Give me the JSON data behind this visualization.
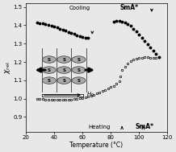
{
  "xlabel": "Temperature (°C)",
  "xlim": [
    20,
    120
  ],
  "ylim": [
    0.82,
    1.52
  ],
  "yticks": [
    0.9,
    1.0,
    1.1,
    1.2,
    1.3,
    1.4,
    1.5
  ],
  "xticks": [
    20,
    40,
    60,
    80,
    100,
    120
  ],
  "cooling_x": [
    28,
    30,
    32,
    34,
    36,
    38,
    40,
    42,
    44,
    46,
    48,
    50,
    52,
    54,
    56,
    58,
    60,
    62,
    64,
    82,
    84,
    86,
    88,
    90,
    92,
    94,
    96,
    98,
    100,
    102,
    104,
    106,
    108,
    110,
    112,
    114
  ],
  "cooling_y": [
    1.415,
    1.413,
    1.41,
    1.406,
    1.401,
    1.397,
    1.392,
    1.387,
    1.382,
    1.376,
    1.37,
    1.364,
    1.358,
    1.352,
    1.346,
    1.34,
    1.336,
    1.333,
    1.33,
    1.42,
    1.422,
    1.422,
    1.42,
    1.416,
    1.408,
    1.396,
    1.382,
    1.366,
    1.349,
    1.33,
    1.313,
    1.295,
    1.278,
    1.26,
    1.242,
    1.228
  ],
  "heating_x": [
    28,
    30,
    32,
    34,
    36,
    38,
    40,
    42,
    44,
    46,
    48,
    50,
    52,
    54,
    56,
    58,
    60,
    62,
    64,
    66,
    68,
    70,
    72,
    74,
    76,
    78,
    80,
    82,
    84,
    86,
    87,
    88,
    90,
    92,
    94,
    96,
    98,
    100,
    102,
    104,
    106,
    108,
    110,
    112
  ],
  "heating_y": [
    0.998,
    0.998,
    0.997,
    0.996,
    0.995,
    0.994,
    0.994,
    0.993,
    0.993,
    0.993,
    0.994,
    0.995,
    0.996,
    0.997,
    0.999,
    1.001,
    1.004,
    1.008,
    1.012,
    1.017,
    1.022,
    1.028,
    1.034,
    1.04,
    1.047,
    1.054,
    1.062,
    1.07,
    1.08,
    1.095,
    1.12,
    1.155,
    1.175,
    1.19,
    1.203,
    1.212,
    1.218,
    1.222,
    1.224,
    1.226,
    1.225,
    1.223,
    1.222,
    1.222
  ],
  "bg_color": "#f0f0f0",
  "label_cooling": "Cooling",
  "label_heating": "Heating",
  "label_SmA_cooling": "SmA*",
  "label_SmA_heating": "SmA*"
}
